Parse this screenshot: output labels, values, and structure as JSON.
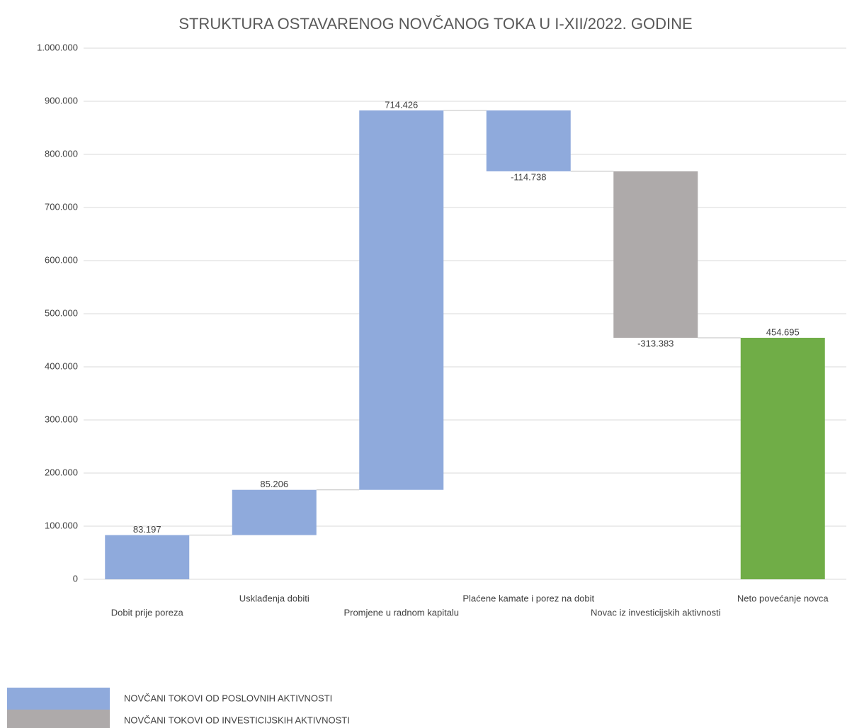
{
  "chart_data": {
    "type": "waterfall",
    "title": "STRUKTURA OSTAVARENOG NOVČANOG TOKA U I-XII/2022. GODINE",
    "categories": [
      "Dobit prije poreza",
      "Usklađenja dobiti",
      "Promjene u radnom kapitalu",
      "Plaćene kamate i porez na dobit",
      "Novac iz investicijskih aktivnosti",
      "Neto povećanje novca"
    ],
    "values": [
      83197,
      85206,
      714426,
      -114738,
      -313383,
      454695
    ],
    "value_labels": [
      "83.197",
      "85.206",
      "714.426",
      "-114.738",
      "-313.383",
      "454.695"
    ],
    "measure": [
      "relative",
      "relative",
      "relative",
      "relative",
      "relative",
      "total"
    ],
    "colors": [
      "#8faadc",
      "#8faadc",
      "#8faadc",
      "#8faadc",
      "#aeaaaa",
      "#70ad47"
    ],
    "ylim": [
      0,
      1000000
    ],
    "yticks": [
      0,
      {
        "value": 100000,
        "label": "100.000"
      },
      {
        "value": 200000,
        "label": "200.000"
      },
      {
        "value": 300000,
        "label": "300.000"
      },
      {
        "value": 400000,
        "label": "400.000"
      },
      {
        "value": 500000,
        "label": "500.000"
      },
      {
        "value": 600000,
        "label": "600.000"
      },
      {
        "value": 700000,
        "label": "700.000"
      },
      {
        "value": 800000,
        "label": "800.000"
      },
      {
        "value": 900000,
        "label": "900.000"
      },
      {
        "value": 1000000,
        "label": "1.000.000"
      }
    ],
    "grid": true,
    "legend": [
      {
        "name": "NOVČANI TOKOVI OD POSLOVNIH AKTIVNOSTI",
        "color": "#8faadc"
      },
      {
        "name": "NOVČANI TOKOVI OD INVESTICIJSKIH AKTIVNOSTI",
        "color": "#aeaaaa"
      }
    ]
  }
}
